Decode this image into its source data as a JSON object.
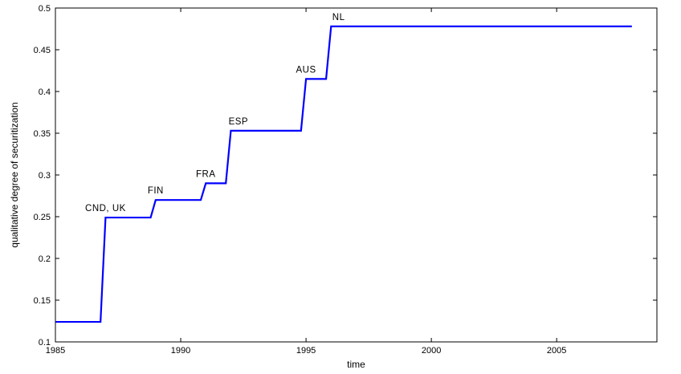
{
  "chart_data": {
    "type": "line",
    "title": "",
    "xlabel": "time",
    "ylabel": "qualitative degree of securitization",
    "xlim": [
      1985,
      2009
    ],
    "ylim": [
      0.1,
      0.5
    ],
    "xticks": [
      1985,
      1990,
      1995,
      2000,
      2005
    ],
    "yticks": [
      0.1,
      0.15,
      0.2,
      0.25,
      0.3,
      0.35,
      0.4,
      0.45,
      0.5
    ],
    "grid": false,
    "series": [
      {
        "color": "#0000ff",
        "x": [
          1985.0,
          1986.8,
          1987.0,
          1988.8,
          1989.0,
          1990.8,
          1991.0,
          1991.8,
          1992.0,
          1994.8,
          1995.0,
          1995.8,
          1996.0,
          2008.0
        ],
        "y": [
          0.124,
          0.124,
          0.249,
          0.249,
          0.27,
          0.27,
          0.29,
          0.29,
          0.353,
          0.353,
          0.415,
          0.415,
          0.478,
          0.478
        ]
      }
    ],
    "annotations": [
      {
        "text": "CND, UK",
        "x": 1987.0,
        "y": 0.249
      },
      {
        "text": "FIN",
        "x": 1989.0,
        "y": 0.27
      },
      {
        "text": "FRA",
        "x": 1991.0,
        "y": 0.29
      },
      {
        "text": "ESP",
        "x": 1992.3,
        "y": 0.353
      },
      {
        "text": "AUS",
        "x": 1995.0,
        "y": 0.415
      },
      {
        "text": "NL",
        "x": 1996.3,
        "y": 0.478
      }
    ]
  }
}
